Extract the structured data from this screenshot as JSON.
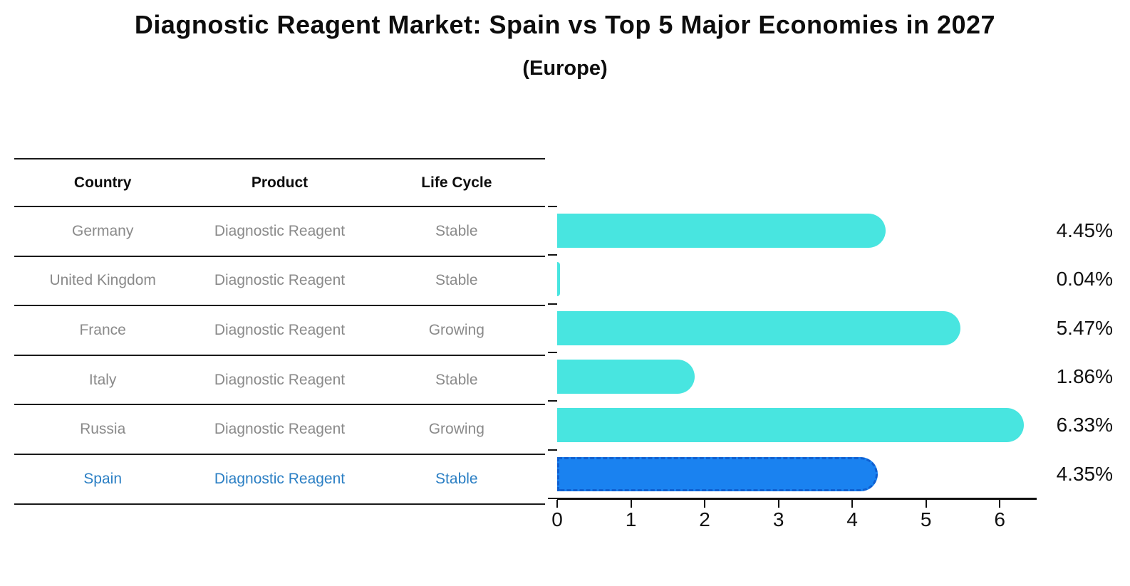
{
  "title": "Diagnostic Reagent Market: Spain vs Top 5 Major Economies in 2027",
  "subtitle": "(Europe)",
  "table": {
    "headers": [
      "Country",
      "Product",
      "Life Cycle"
    ],
    "rows": [
      {
        "country": "Germany",
        "product": "Diagnostic Reagent",
        "life_cycle": "Stable",
        "highlight": false
      },
      {
        "country": "United Kingdom",
        "product": "Diagnostic Reagent",
        "life_cycle": "Stable",
        "highlight": false
      },
      {
        "country": "France",
        "product": "Diagnostic Reagent",
        "life_cycle": "Growing",
        "highlight": false
      },
      {
        "country": "Italy",
        "product": "Diagnostic Reagent",
        "life_cycle": "Stable",
        "highlight": false
      },
      {
        "country": "Russia",
        "product": "Diagnostic Reagent",
        "life_cycle": "Growing",
        "highlight": false
      },
      {
        "country": "Spain",
        "product": "Diagnostic Reagent",
        "life_cycle": "Stable",
        "highlight": true
      }
    ]
  },
  "chart_data": {
    "type": "bar",
    "orientation": "horizontal",
    "title": "Diagnostic Reagent Market: Spain vs Top 5 Major Economies in 2027",
    "subtitle": "(Europe)",
    "categories": [
      "Germany",
      "United Kingdom",
      "France",
      "Italy",
      "Russia",
      "Spain"
    ],
    "values": [
      4.45,
      0.04,
      5.47,
      1.86,
      6.33,
      4.35
    ],
    "value_labels": [
      "4.45%",
      "0.04%",
      "5.47%",
      "1.86%",
      "6.33%",
      "4.35%"
    ],
    "xlim": [
      0,
      6.5
    ],
    "xticks": [
      0,
      1,
      2,
      3,
      4,
      5,
      6
    ],
    "grid": false,
    "legend": "none",
    "highlight_category": "Spain",
    "highlight_index": 5
  },
  "colors": {
    "background": "#ffffff",
    "bar_cyan": "#48E5E0",
    "bar_blue": "#1A82F0",
    "bar_blue_border": "#0F5FD0",
    "table_line": "#1a1a1a",
    "row_text": "#8a8a8a",
    "header_text": "#0d0d0d",
    "highlight_text": "#2b7fc4",
    "axis": "#111111",
    "value_text": "#111111"
  }
}
